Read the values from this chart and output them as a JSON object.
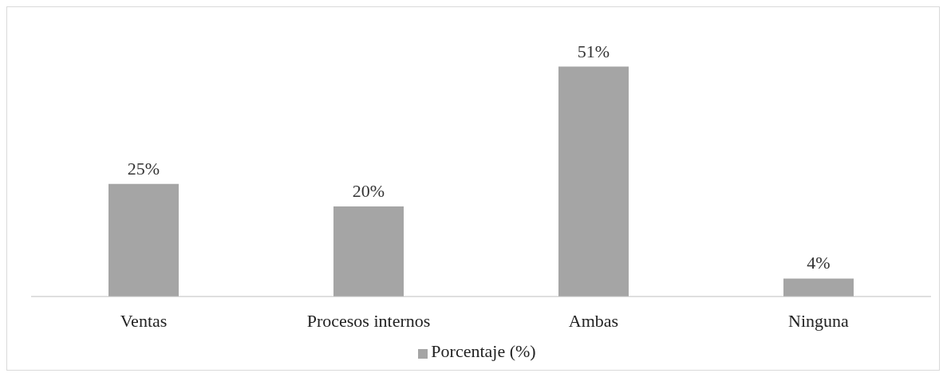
{
  "chart_data": {
    "type": "bar",
    "categories": [
      "Ventas",
      "Procesos internos",
      "Ambas",
      "Ninguna"
    ],
    "series": [
      {
        "name": "Porcentaje (%)",
        "color": "#a5a5a5",
        "values": [
          25,
          20,
          51,
          4
        ],
        "value_labels": [
          "25%",
          "20%",
          "51%",
          "4%"
        ]
      }
    ],
    "legend": "bottom",
    "grid": false
  }
}
